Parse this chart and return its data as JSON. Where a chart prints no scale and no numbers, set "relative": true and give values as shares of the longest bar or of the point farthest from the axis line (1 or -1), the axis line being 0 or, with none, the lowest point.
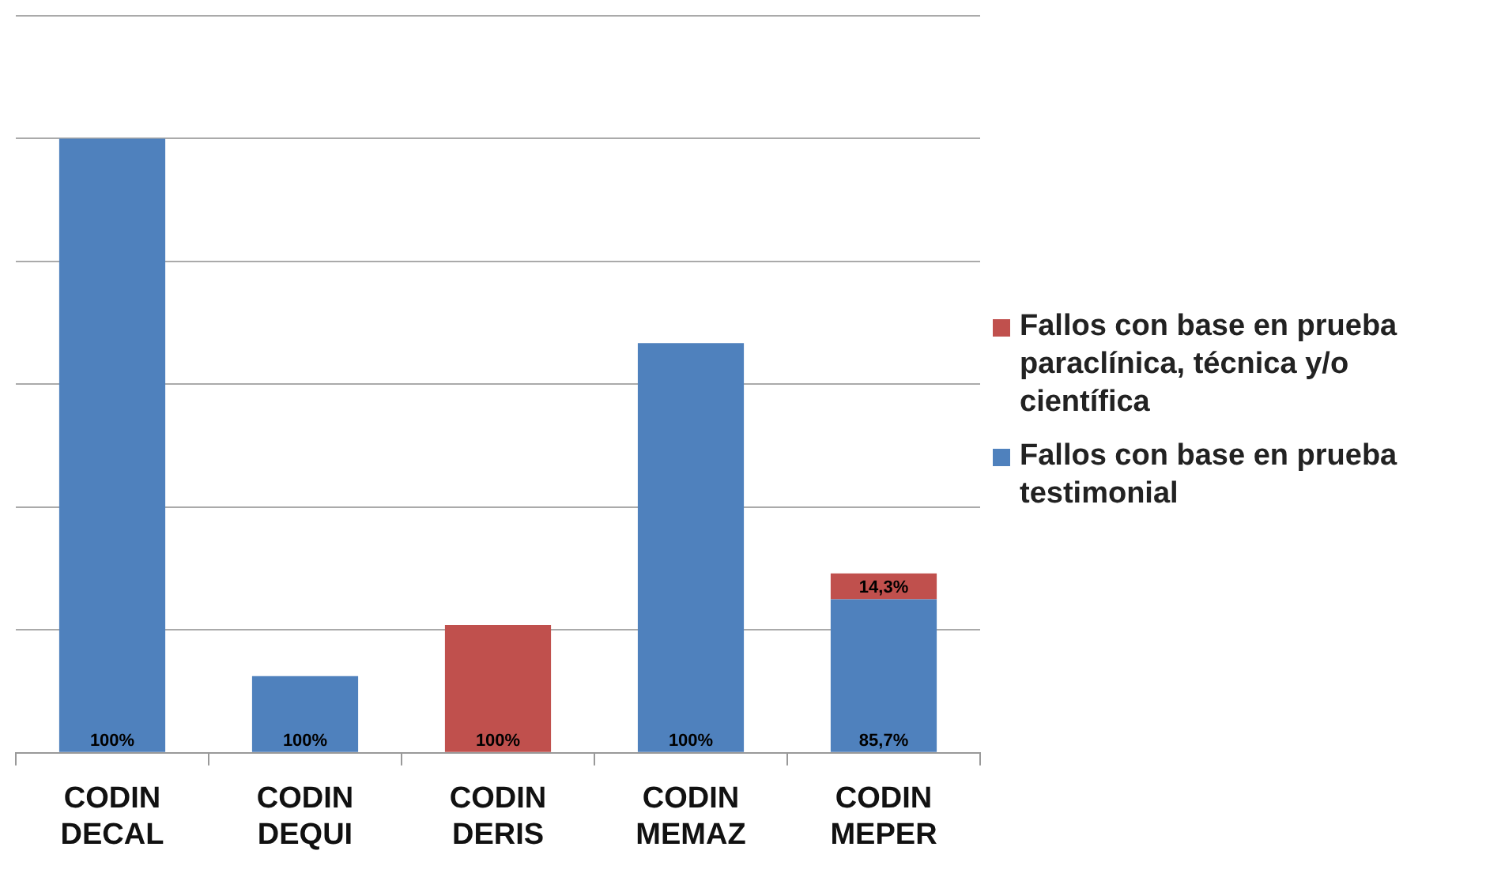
{
  "chart_data": {
    "type": "bar",
    "stacked": true,
    "relative": true,
    "grid": "y",
    "legend": "right",
    "categories": [
      "CODIN DECAL",
      "CODIN DEQUI",
      "CODIN DERIS",
      "CODIN MEMAZ",
      "CODIN MEPER"
    ],
    "series": [
      {
        "name": "Fallos con base en prueba testimonial",
        "color": "#4f81bd",
        "values": [
          1,
          0.125,
          null,
          0.667,
          0.25
        ]
      },
      {
        "name": "Fallos con base en prueba paraclínica, técnica y/o científica",
        "color": "#c0504d",
        "values": [
          null,
          null,
          0.208,
          null,
          0.042
        ]
      }
    ],
    "annotations": [
      {
        "text": "100%",
        "x": "CODIN DECAL",
        "y": 0
      },
      {
        "text": "100%",
        "x": "CODIN DEQUI",
        "y": 0
      },
      {
        "text": "100%",
        "x": "CODIN DERIS",
        "y": 0
      },
      {
        "text": "100%",
        "x": "CODIN MEMAZ",
        "y": 0
      },
      {
        "text": "85,7%",
        "x": "CODIN MEPER",
        "y": 0
      },
      {
        "text": "14,3%",
        "x": "CODIN MEPER",
        "y": 0.25
      }
    ]
  }
}
